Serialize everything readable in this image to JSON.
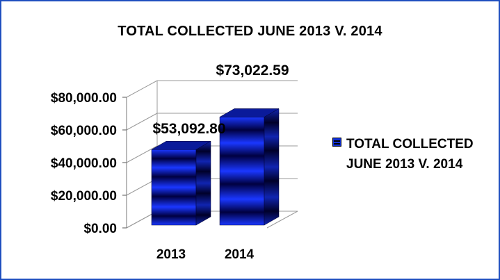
{
  "chart_data": {
    "type": "bar",
    "title": "TOTAL COLLECTED JUNE 2013 V. 2014",
    "categories": [
      "2013",
      "2014"
    ],
    "series": [
      {
        "name": "TOTAL COLLECTED JUNE 2013 V. 2014",
        "values": [
          53092.8,
          73022.59
        ],
        "data_labels": [
          "$53,092.80",
          "$73,022.59"
        ]
      }
    ],
    "y_ticks": [
      {
        "value": 0,
        "label": "$0.00"
      },
      {
        "value": 20000,
        "label": "$20,000.00"
      },
      {
        "value": 40000,
        "label": "$40,000.00"
      },
      {
        "value": 60000,
        "label": "$60,000.00"
      },
      {
        "value": 80000,
        "label": "$80,000.00"
      }
    ],
    "ylim": [
      0,
      80000
    ],
    "xlabel": "",
    "ylabel": "",
    "grid": true,
    "legend_position": "right",
    "three_d": true,
    "colors": {
      "bar_light": "#2a4cff",
      "bar_dark": "#00003a",
      "frame": "#1f4fbf"
    }
  }
}
